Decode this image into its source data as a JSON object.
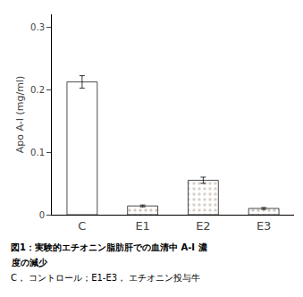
{
  "chart_data": {
    "type": "bar",
    "categories": [
      "C",
      "E1",
      "E2",
      "E3"
    ],
    "values": [
      0.212,
      0.014,
      0.055,
      0.01
    ],
    "errors": [
      0.01,
      0.0015,
      0.005,
      0.0015
    ],
    "colors": [
      "#ffffff",
      "#d0c8c0",
      "#d8d0c8",
      "#d0c8c0"
    ],
    "ylabel": "Apo A-I (mg/ml)",
    "ylim": [
      0,
      0.32
    ],
    "yticks": [
      0,
      0.1,
      0.2,
      0.3
    ],
    "annotations": [
      "図1：実験的エチオニン脂肪肝での血清中 A-I 濃",
      "度の減少",
      "C， コントロール；E1-E3， エチオニン投与牛"
    ],
    "grid": false
  }
}
